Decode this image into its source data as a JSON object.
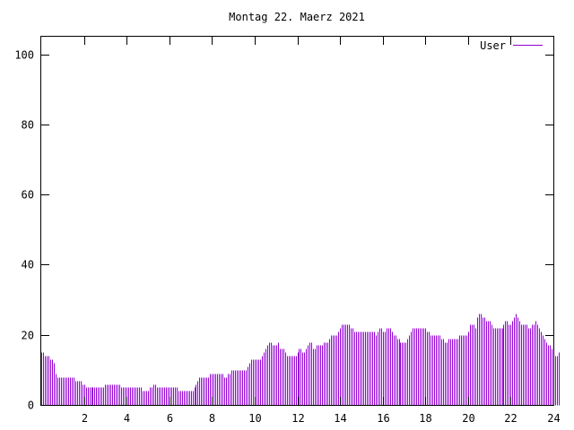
{
  "chart_data": {
    "type": "bar",
    "title": "Montag 22. Maerz 2021",
    "xlabel": "",
    "ylabel": "",
    "xlim": [
      0,
      24
    ],
    "ylim": [
      0,
      105
    ],
    "x_ticks": [
      2,
      4,
      6,
      8,
      10,
      12,
      14,
      16,
      18,
      20,
      22,
      24
    ],
    "y_ticks": [
      0,
      20,
      40,
      60,
      80,
      100
    ],
    "grid": false,
    "legend_position": "top-right",
    "series": [
      {
        "name": "User",
        "color": "#9400d3",
        "interval_minutes": 5,
        "values": [
          15,
          15,
          14,
          14,
          14,
          13,
          13,
          12,
          9,
          8,
          8,
          8,
          8,
          8,
          8,
          8,
          8,
          8,
          8,
          7,
          7,
          7,
          7,
          6,
          6,
          5,
          5,
          5,
          5,
          5,
          5,
          5,
          5,
          5,
          5,
          5,
          6,
          6,
          6,
          6,
          6,
          6,
          6,
          6,
          6,
          5,
          5,
          5,
          5,
          5,
          5,
          5,
          5,
          5,
          5,
          5,
          5,
          4,
          4,
          4,
          4,
          5,
          5,
          6,
          6,
          5,
          5,
          5,
          5,
          5,
          5,
          5,
          5,
          5,
          5,
          5,
          5,
          4,
          4,
          4,
          4,
          4,
          4,
          4,
          4,
          4,
          5,
          6,
          7,
          8,
          8,
          8,
          8,
          8,
          8,
          9,
          9,
          9,
          9,
          9,
          9,
          9,
          9,
          8,
          8,
          9,
          9,
          10,
          10,
          10,
          10,
          10,
          10,
          10,
          10,
          10,
          11,
          12,
          13,
          13,
          13,
          13,
          13,
          13,
          14,
          15,
          16,
          17,
          18,
          18,
          17,
          17,
          17,
          18,
          16,
          16,
          16,
          15,
          14,
          14,
          14,
          14,
          14,
          14,
          15,
          16,
          16,
          15,
          15,
          16,
          17,
          18,
          18,
          16,
          16,
          17,
          17,
          17,
          17,
          18,
          18,
          18,
          19,
          20,
          20,
          20,
          20,
          21,
          22,
          23,
          23,
          23,
          23,
          23,
          22,
          22,
          21,
          21,
          21,
          21,
          21,
          21,
          21,
          21,
          21,
          21,
          21,
          21,
          20,
          21,
          22,
          22,
          21,
          21,
          22,
          22,
          22,
          21,
          20,
          20,
          19,
          19,
          18,
          18,
          18,
          18,
          19,
          20,
          21,
          22,
          22,
          22,
          22,
          22,
          22,
          22,
          22,
          21,
          21,
          20,
          20,
          20,
          20,
          20,
          20,
          19,
          19,
          18,
          18,
          19,
          19,
          19,
          19,
          19,
          19,
          20,
          20,
          20,
          20,
          20,
          21,
          23,
          23,
          23,
          22,
          25,
          26,
          26,
          25,
          25,
          24,
          24,
          24,
          23,
          22,
          22,
          22,
          22,
          22,
          22,
          23,
          24,
          24,
          23,
          23,
          24,
          25,
          26,
          25,
          24,
          23,
          23,
          23,
          23,
          22,
          22,
          23,
          23,
          24,
          23,
          22,
          21,
          20,
          19,
          18,
          17,
          17,
          16,
          15,
          14,
          14,
          15
        ]
      }
    ]
  }
}
